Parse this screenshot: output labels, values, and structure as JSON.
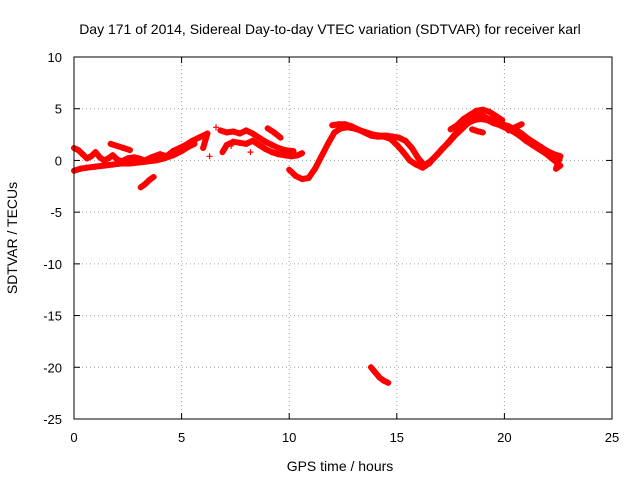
{
  "chart_data": {
    "type": "scatter",
    "title": "Day 171 of 2014, Sidereal Day-to-day VTEC variation (SDTVAR) for receiver karl",
    "xlabel": "GPS time / hours",
    "ylabel": "SDTVAR / TECUs",
    "xlim": [
      0,
      25
    ],
    "ylim": [
      -25,
      10
    ],
    "x_ticks": [
      "0",
      "5",
      "10",
      "15",
      "20",
      "25"
    ],
    "y_ticks": [
      "-25",
      "-20",
      "-15",
      "-10",
      "-5",
      "0",
      "5",
      "10"
    ],
    "grid": true,
    "marker": "+",
    "color": "#ff0000",
    "series": [
      {
        "name": "SDTVAR",
        "points": [
          [
            0.0,
            1.2
          ],
          [
            0.2,
            1.0
          ],
          [
            0.4,
            0.6
          ],
          [
            0.6,
            0.2
          ],
          [
            0.8,
            0.4
          ],
          [
            1.0,
            0.8
          ],
          [
            1.2,
            0.3
          ],
          [
            1.4,
            0.0
          ],
          [
            1.6,
            0.2
          ],
          [
            1.8,
            0.5
          ],
          [
            2.0,
            0.1
          ],
          [
            2.2,
            -0.1
          ],
          [
            2.5,
            0.2
          ],
          [
            2.8,
            0.3
          ],
          [
            3.0,
            0.2
          ],
          [
            3.3,
            0.0
          ],
          [
            3.6,
            0.3
          ],
          [
            4.0,
            0.6
          ],
          [
            4.3,
            0.4
          ],
          [
            4.6,
            0.9
          ],
          [
            4.9,
            1.2
          ],
          [
            5.2,
            1.5
          ],
          [
            5.5,
            1.9
          ],
          [
            5.8,
            2.2
          ],
          [
            6.2,
            2.6
          ],
          [
            6.0,
            1.2
          ],
          [
            0.0,
            -1.0
          ],
          [
            0.3,
            -0.8
          ],
          [
            0.6,
            -0.7
          ],
          [
            1.0,
            -0.6
          ],
          [
            1.4,
            -0.5
          ],
          [
            1.8,
            -0.4
          ],
          [
            2.2,
            -0.3
          ],
          [
            2.6,
            -0.3
          ],
          [
            3.0,
            -0.2
          ],
          [
            3.4,
            -0.1
          ],
          [
            3.8,
            0.0
          ],
          [
            4.2,
            0.2
          ],
          [
            4.6,
            0.5
          ],
          [
            5.0,
            0.9
          ],
          [
            5.3,
            1.3
          ],
          [
            5.6,
            1.6
          ],
          [
            1.7,
            1.6
          ],
          [
            2.0,
            1.4
          ],
          [
            2.3,
            1.2
          ],
          [
            2.6,
            1.0
          ],
          [
            3.1,
            -2.6
          ],
          [
            3.3,
            -2.3
          ],
          [
            3.5,
            -1.9
          ],
          [
            3.7,
            -1.6
          ],
          [
            6.3,
            0.4
          ],
          [
            6.6,
            3.2
          ],
          [
            6.9,
            0.8
          ],
          [
            7.1,
            1.5
          ],
          [
            7.4,
            1.8
          ],
          [
            7.7,
            1.7
          ],
          [
            8.0,
            1.6
          ],
          [
            8.3,
            1.9
          ],
          [
            8.6,
            1.5
          ],
          [
            8.9,
            1.1
          ],
          [
            9.2,
            0.8
          ],
          [
            9.5,
            0.6
          ],
          [
            9.8,
            0.5
          ],
          [
            10.1,
            0.4
          ],
          [
            10.4,
            0.5
          ],
          [
            10.6,
            0.7
          ],
          [
            6.8,
            2.9
          ],
          [
            7.1,
            2.7
          ],
          [
            7.4,
            2.8
          ],
          [
            7.7,
            2.6
          ],
          [
            8.0,
            2.9
          ],
          [
            8.3,
            2.6
          ],
          [
            8.6,
            2.2
          ],
          [
            8.9,
            1.8
          ],
          [
            9.2,
            1.5
          ],
          [
            9.5,
            1.2
          ],
          [
            9.8,
            1.0
          ],
          [
            10.2,
            0.9
          ],
          [
            9.0,
            3.1
          ],
          [
            9.3,
            2.7
          ],
          [
            9.6,
            2.2
          ],
          [
            7.3,
            1.4
          ],
          [
            8.2,
            0.8
          ],
          [
            10.0,
            -0.9
          ],
          [
            10.3,
            -1.5
          ],
          [
            10.6,
            -1.8
          ],
          [
            10.9,
            -1.7
          ],
          [
            11.2,
            -0.8
          ],
          [
            11.5,
            0.4
          ],
          [
            11.8,
            1.6
          ],
          [
            12.1,
            2.7
          ],
          [
            12.4,
            3.1
          ],
          [
            12.7,
            3.2
          ],
          [
            13.0,
            3.1
          ],
          [
            13.3,
            2.9
          ],
          [
            13.6,
            2.7
          ],
          [
            13.9,
            2.5
          ],
          [
            14.2,
            2.4
          ],
          [
            14.5,
            2.4
          ],
          [
            14.8,
            2.3
          ],
          [
            15.1,
            2.2
          ],
          [
            15.4,
            1.9
          ],
          [
            15.7,
            1.2
          ],
          [
            16.0,
            0.2
          ],
          [
            16.3,
            -0.5
          ],
          [
            16.6,
            0.0
          ],
          [
            16.9,
            0.6
          ],
          [
            17.2,
            1.3
          ],
          [
            17.5,
            2.0
          ],
          [
            17.8,
            2.8
          ],
          [
            18.1,
            3.5
          ],
          [
            18.4,
            4.0
          ],
          [
            18.7,
            4.4
          ],
          [
            19.0,
            4.3
          ],
          [
            19.3,
            4.0
          ],
          [
            19.6,
            3.7
          ],
          [
            19.9,
            3.5
          ],
          [
            20.2,
            3.3
          ],
          [
            20.5,
            3.0
          ],
          [
            20.8,
            2.6
          ],
          [
            21.1,
            2.1
          ],
          [
            21.4,
            1.7
          ],
          [
            21.7,
            1.3
          ],
          [
            22.0,
            0.9
          ],
          [
            22.3,
            0.6
          ],
          [
            22.6,
            0.4
          ],
          [
            22.4,
            -0.8
          ],
          [
            22.6,
            -0.5
          ],
          [
            12.0,
            3.4
          ],
          [
            12.3,
            3.5
          ],
          [
            12.6,
            3.5
          ],
          [
            12.9,
            3.3
          ],
          [
            13.2,
            3.0
          ],
          [
            13.5,
            2.7
          ],
          [
            13.8,
            2.4
          ],
          [
            14.1,
            2.3
          ],
          [
            14.4,
            2.3
          ],
          [
            14.7,
            2.1
          ],
          [
            15.0,
            1.5
          ],
          [
            15.3,
            0.8
          ],
          [
            15.6,
            0.0
          ],
          [
            15.9,
            -0.4
          ],
          [
            16.2,
            -0.7
          ],
          [
            16.5,
            -0.3
          ],
          [
            16.8,
            0.4
          ],
          [
            17.1,
            1.1
          ],
          [
            17.4,
            1.7
          ],
          [
            17.7,
            2.4
          ],
          [
            18.0,
            3.0
          ],
          [
            18.3,
            3.6
          ],
          [
            18.6,
            3.9
          ],
          [
            18.9,
            4.0
          ],
          [
            19.2,
            3.9
          ],
          [
            19.5,
            3.6
          ],
          [
            19.8,
            3.4
          ],
          [
            20.1,
            3.1
          ],
          [
            20.4,
            2.8
          ],
          [
            20.7,
            2.4
          ],
          [
            21.0,
            1.9
          ],
          [
            21.3,
            1.5
          ],
          [
            21.6,
            1.1
          ],
          [
            21.9,
            0.7
          ],
          [
            22.2,
            0.2
          ],
          [
            22.5,
            -0.3
          ],
          [
            17.5,
            3.0
          ],
          [
            17.8,
            3.4
          ],
          [
            18.1,
            4.0
          ],
          [
            18.4,
            4.4
          ],
          [
            18.7,
            4.8
          ],
          [
            19.0,
            4.9
          ],
          [
            19.3,
            4.7
          ],
          [
            19.6,
            4.3
          ],
          [
            19.9,
            3.9
          ],
          [
            18.5,
            3.0
          ],
          [
            18.8,
            2.8
          ],
          [
            19.0,
            2.7
          ],
          [
            20.2,
            2.9
          ],
          [
            20.5,
            3.2
          ],
          [
            20.8,
            3.5
          ],
          [
            13.8,
            -20.0
          ],
          [
            14.0,
            -20.5
          ],
          [
            14.2,
            -21.0
          ],
          [
            14.4,
            -21.3
          ],
          [
            14.6,
            -21.5
          ]
        ]
      }
    ]
  }
}
